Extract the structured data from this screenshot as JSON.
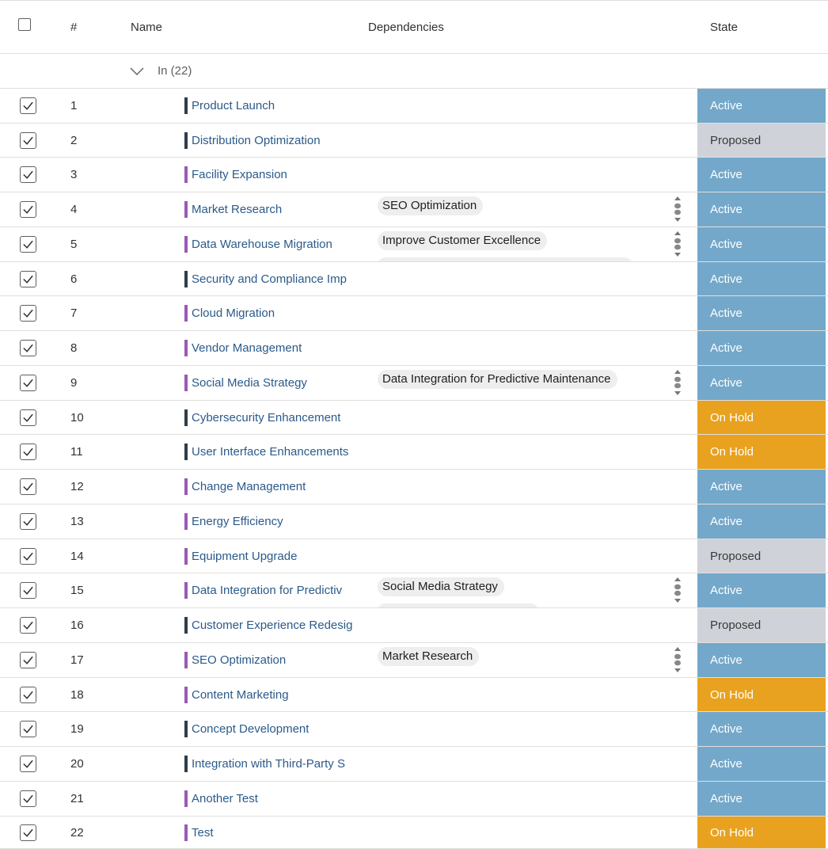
{
  "header": {
    "num": "#",
    "name": "Name",
    "dependencies": "Dependencies",
    "state": "State"
  },
  "group": {
    "label": "In (22)"
  },
  "colors": {
    "active": "#73a8ca",
    "proposed": "#cfd2d9",
    "on_hold": "#e8a21f",
    "bar_purple": "#9b59b6",
    "bar_dark": "#2f3d4a"
  },
  "rows": [
    {
      "num": "1",
      "name": "Product Launch",
      "bar": "dark",
      "deps": [],
      "state": "Active",
      "state_key": "active"
    },
    {
      "num": "2",
      "name": "Distribution Optimization",
      "bar": "dark",
      "deps": [],
      "state": "Proposed",
      "state_key": "proposed"
    },
    {
      "num": "3",
      "name": "Facility Expansion",
      "bar": "purple",
      "deps": [],
      "state": "Active",
      "state_key": "active"
    },
    {
      "num": "4",
      "name": "Market Research",
      "bar": "purple",
      "deps": [
        "SEO Optimization"
      ],
      "state": "Active",
      "state_key": "active"
    },
    {
      "num": "5",
      "name": "Data Warehouse Migration",
      "bar": "purple",
      "deps": [
        "Improve Customer Excellence"
      ],
      "state": "Active",
      "state_key": "active"
    },
    {
      "num": "6",
      "name": "Security and Compliance Imp",
      "bar": "dark",
      "deps": [],
      "state": "Active",
      "state_key": "active"
    },
    {
      "num": "7",
      "name": "Cloud Migration",
      "bar": "purple",
      "deps": [],
      "state": "Active",
      "state_key": "active"
    },
    {
      "num": "8",
      "name": "Vendor Management",
      "bar": "purple",
      "deps": [],
      "state": "Active",
      "state_key": "active"
    },
    {
      "num": "9",
      "name": "Social Media Strategy",
      "bar": "purple",
      "deps": [
        "Data Integration for Predictive Maintenance"
      ],
      "state": "Active",
      "state_key": "active"
    },
    {
      "num": "10",
      "name": "Cybersecurity Enhancement",
      "bar": "dark",
      "deps": [],
      "state": "On Hold",
      "state_key": "on_hold"
    },
    {
      "num": "11",
      "name": "User Interface Enhancements",
      "bar": "dark",
      "deps": [],
      "state": "On Hold",
      "state_key": "on_hold"
    },
    {
      "num": "12",
      "name": "Change Management",
      "bar": "purple",
      "deps": [],
      "state": "Active",
      "state_key": "active"
    },
    {
      "num": "13",
      "name": "Energy Efficiency",
      "bar": "purple",
      "deps": [],
      "state": "Active",
      "state_key": "active"
    },
    {
      "num": "14",
      "name": "Equipment Upgrade",
      "bar": "purple",
      "deps": [],
      "state": "Proposed",
      "state_key": "proposed"
    },
    {
      "num": "15",
      "name": "Data Integration for Predictiv",
      "bar": "purple",
      "deps": [
        "Social Media Strategy"
      ],
      "state": "Active",
      "state_key": "active"
    },
    {
      "num": "16",
      "name": "Customer Experience Redesig",
      "bar": "dark",
      "deps": [],
      "state": "Proposed",
      "state_key": "proposed"
    },
    {
      "num": "17",
      "name": "SEO Optimization",
      "bar": "purple",
      "deps": [
        "Market Research"
      ],
      "state": "Active",
      "state_key": "active"
    },
    {
      "num": "18",
      "name": "Content Marketing",
      "bar": "purple",
      "deps": [],
      "state": "On Hold",
      "state_key": "on_hold"
    },
    {
      "num": "19",
      "name": "Concept Development",
      "bar": "dark",
      "deps": [],
      "state": "Active",
      "state_key": "active"
    },
    {
      "num": "20",
      "name": "Integration with Third-Party S",
      "bar": "dark",
      "deps": [],
      "state": "Active",
      "state_key": "active"
    },
    {
      "num": "21",
      "name": "Another Test",
      "bar": "purple",
      "deps": [],
      "state": "Active",
      "state_key": "active"
    },
    {
      "num": "22",
      "name": "Test",
      "bar": "purple",
      "deps": [],
      "state": "On Hold",
      "state_key": "on_hold"
    }
  ]
}
